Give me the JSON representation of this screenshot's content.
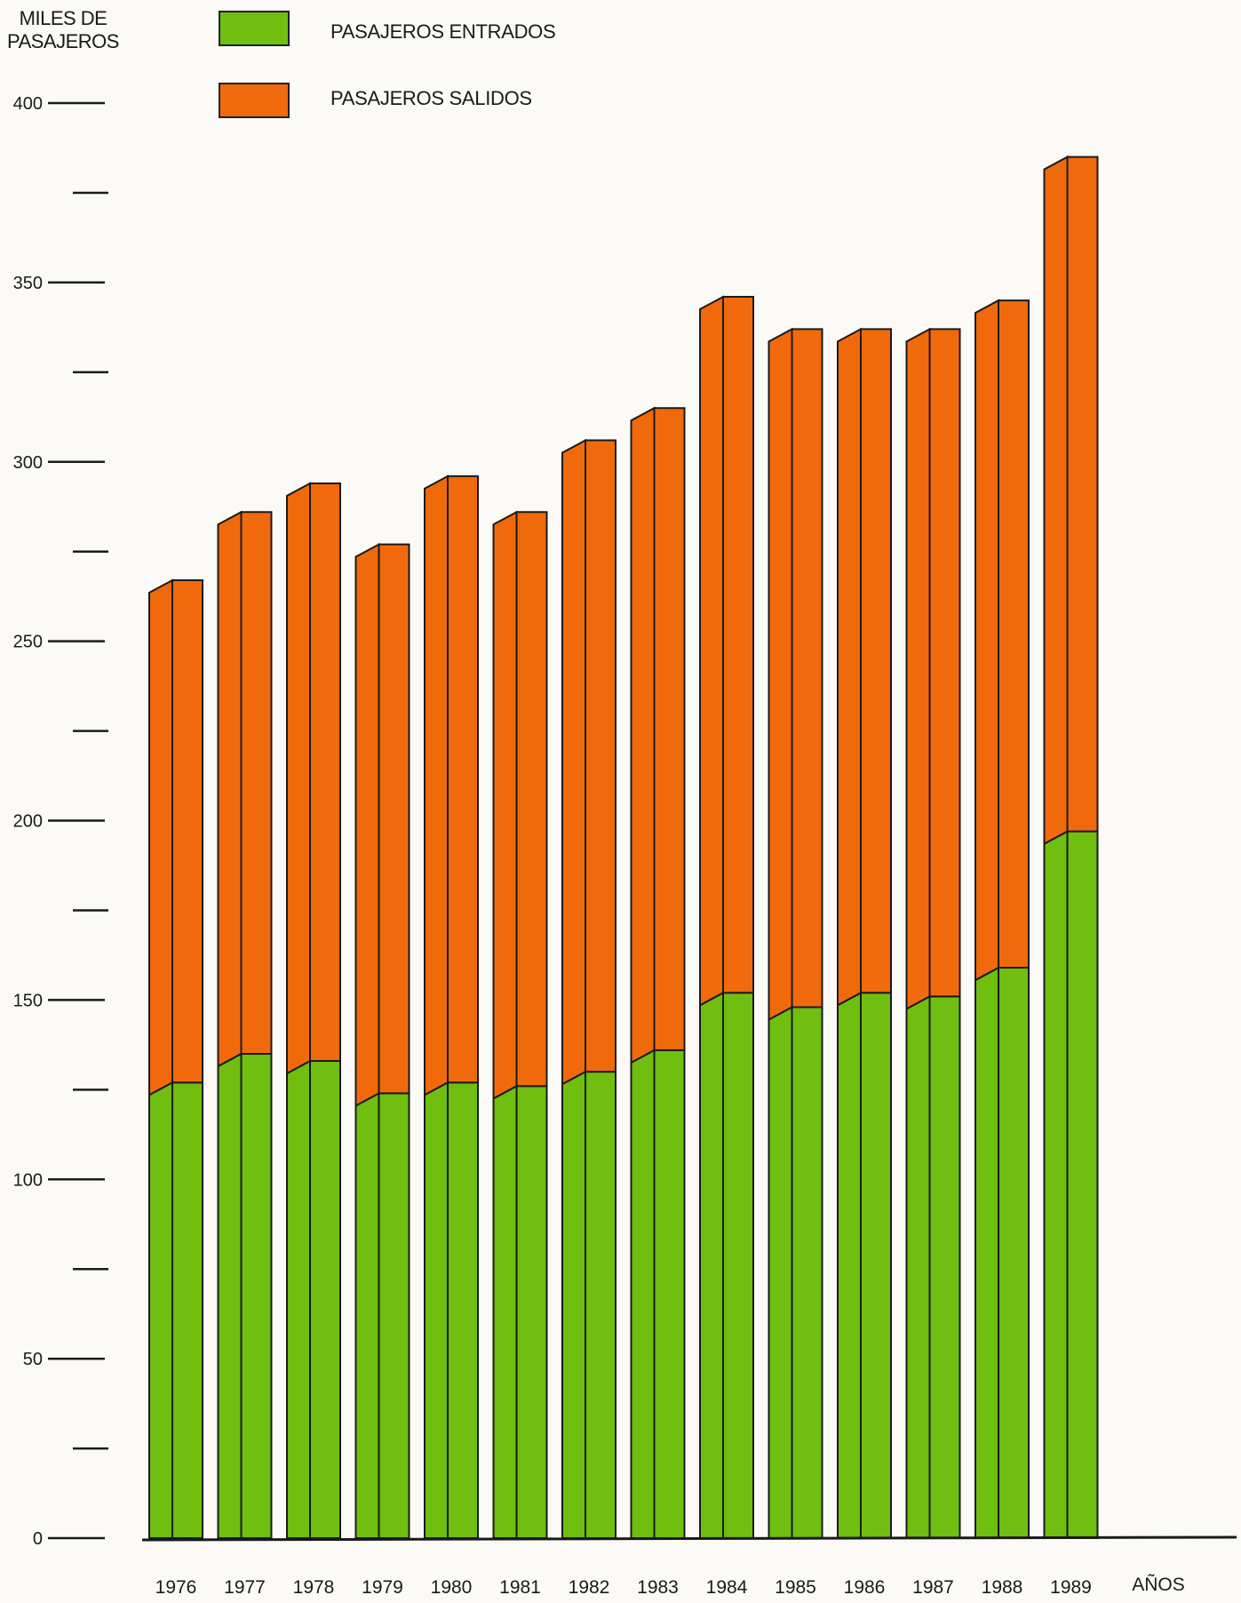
{
  "colors": {
    "entrados": "#6fbe10",
    "entrados_dark": "#5aa00a",
    "salidos": "#f06a0c",
    "salidos_dark": "#d85a05",
    "outline": "#1a1a1a"
  },
  "chart_data": {
    "type": "bar",
    "stacked": true,
    "ylabel": "MILES DE PASAJEROS",
    "xlabel": "AÑOS",
    "ylim": [
      0,
      400
    ],
    "yticks_labeled": [
      0,
      50,
      100,
      150,
      200,
      250,
      300,
      350,
      400
    ],
    "yticks_minor": [
      25,
      75,
      125,
      175,
      225,
      275,
      325,
      375
    ],
    "categories": [
      "1976",
      "1977",
      "1978",
      "1979",
      "1980",
      "1981",
      "1982",
      "1983",
      "1984",
      "1985",
      "1986",
      "1987",
      "1988",
      "1989"
    ],
    "series": [
      {
        "name": "PASAJEROS ENTRADOS",
        "values": [
          127,
          135,
          133,
          124,
          127,
          126,
          130,
          136,
          152,
          148,
          152,
          151,
          159,
          197
        ]
      },
      {
        "name": "PASAJEROS SALIDOS",
        "values": [
          140,
          151,
          161,
          153,
          169,
          160,
          176,
          179,
          194,
          189,
          185,
          186,
          186,
          188
        ]
      }
    ]
  }
}
